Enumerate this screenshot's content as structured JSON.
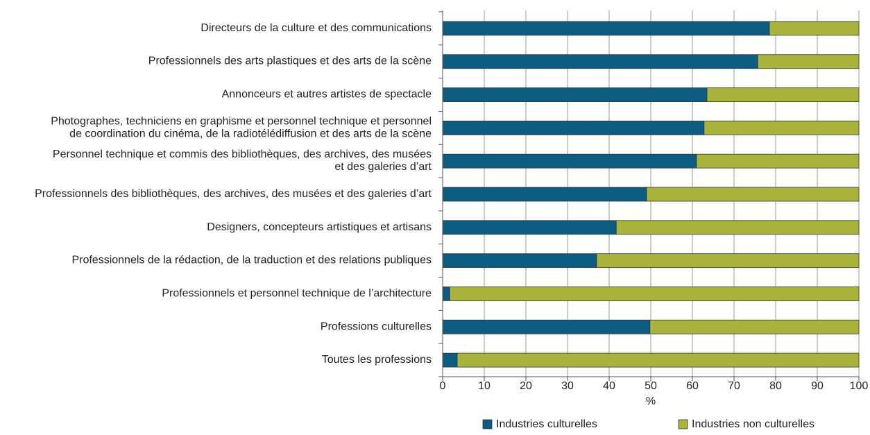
{
  "chart_data": {
    "type": "stacked-barh",
    "categories": [
      "Directeurs de la culture et des communications",
      "Professionnels des arts plastiques et des arts de la scène",
      "Annonceurs et autres artistes de spectacle",
      "Photographes, techniciens en graphisme et personnel technique et personnel\nde coordination du cinéma, de la radiotélédiffusion et des arts de la scène",
      "Personnel technique et commis des bibliothèques, des archives, des musées\net des galeries d’art",
      "Professionnels des bibliothèques, des archives, des musées et des galeries d’art",
      "Designers, concepteurs artistiques et artisans",
      "Professionnels de la rédaction, de la traduction et des relations publiques",
      "Professionnels et personnel technique de l’architecture",
      "Professions culturelles",
      "Toutes les professions"
    ],
    "series": [
      {
        "name": "Industries culturelles",
        "color": "#0d5b80",
        "values": [
          78.5,
          75.7,
          63.5,
          62.8,
          61.0,
          49.0,
          41.7,
          37.0,
          1.7,
          49.8,
          3.5
        ]
      },
      {
        "name": "Industries non culturelles",
        "color": "#a9b53a",
        "values": [
          21.5,
          24.3,
          36.5,
          37.2,
          39.0,
          51.0,
          58.3,
          63.0,
          98.3,
          50.2,
          96.5
        ]
      }
    ],
    "xlabel": "%",
    "xlim": [
      0,
      100
    ],
    "xticks": [
      0,
      10,
      20,
      30,
      40,
      50,
      60,
      70,
      80,
      90,
      100
    ],
    "grid": true
  }
}
